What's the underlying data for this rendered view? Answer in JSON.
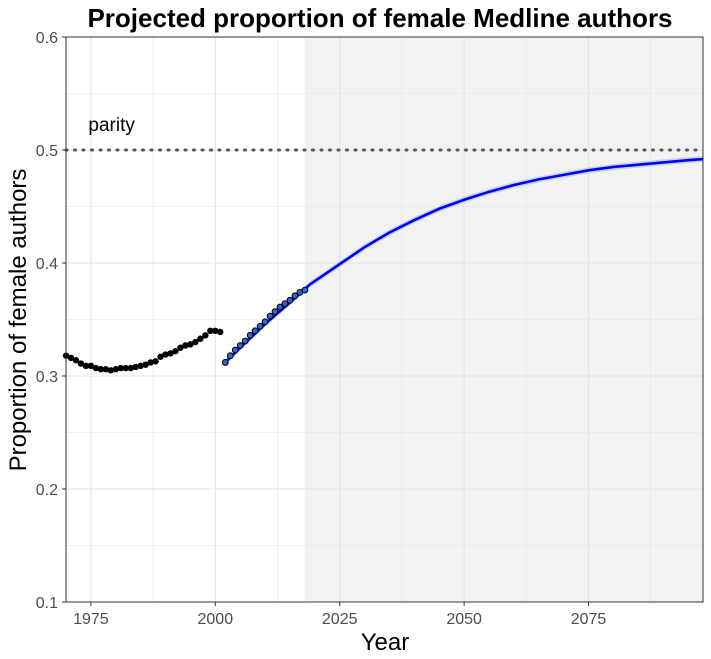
{
  "chart_data": {
    "type": "scatter",
    "title": "Projected proportion of female Medline authors",
    "xlabel": "Year",
    "ylabel": "Proportion of female authors",
    "xlim": [
      1970,
      2098
    ],
    "ylim": [
      0.1,
      0.6
    ],
    "x_ticks": [
      1975,
      2000,
      2025,
      2050,
      2075
    ],
    "y_ticks": [
      0.1,
      0.2,
      0.3,
      0.4,
      0.5,
      0.6
    ],
    "grid": true,
    "projection_region": {
      "x_start": 2018,
      "x_end": 2098,
      "color": "#f2f2f2"
    },
    "reference_line": {
      "y": 0.5,
      "label": "parity",
      "label_x": 1974.5,
      "label_y": 0.517,
      "style": "dotted",
      "color": "#555555"
    },
    "series": [
      {
        "role": "observed-early",
        "kind": "points",
        "color": "#000000",
        "x": [
          1970,
          1971,
          1972,
          1973,
          1974,
          1975,
          1976,
          1977,
          1978,
          1979,
          1980,
          1981,
          1982,
          1983,
          1984,
          1985,
          1986,
          1987,
          1988,
          1989,
          1990,
          1991,
          1992,
          1993,
          1994,
          1995,
          1996,
          1997,
          1998,
          1999,
          2000,
          2001
        ],
        "y": [
          0.318,
          0.316,
          0.314,
          0.311,
          0.309,
          0.309,
          0.307,
          0.306,
          0.306,
          0.305,
          0.306,
          0.307,
          0.307,
          0.307,
          0.308,
          0.309,
          0.31,
          0.312,
          0.313,
          0.317,
          0.319,
          0.32,
          0.322,
          0.325,
          0.327,
          0.328,
          0.33,
          0.333,
          0.336,
          0.34,
          0.34,
          0.339
        ]
      },
      {
        "role": "observed-recent",
        "kind": "points",
        "color": "#000000",
        "fill": "#3366cc",
        "x": [
          2002,
          2003,
          2004,
          2005,
          2006,
          2007,
          2008,
          2009,
          2010,
          2011,
          2012,
          2013,
          2014,
          2015,
          2016,
          2017,
          2018
        ],
        "y": [
          0.312,
          0.318,
          0.323,
          0.327,
          0.331,
          0.336,
          0.34,
          0.344,
          0.348,
          0.353,
          0.357,
          0.361,
          0.364,
          0.367,
          0.371,
          0.374,
          0.376
        ]
      },
      {
        "role": "fitted-projection",
        "kind": "line",
        "color": "#0000ff",
        "band_color": "#b8c4e8",
        "x": [
          2002,
          2005,
          2010,
          2015,
          2019,
          2025,
          2030,
          2035,
          2040,
          2045,
          2050,
          2055,
          2060,
          2065,
          2070,
          2075,
          2080,
          2085,
          2090,
          2095,
          2098
        ],
        "y": [
          0.312,
          0.325,
          0.346,
          0.365,
          0.381,
          0.399,
          0.414,
          0.427,
          0.438,
          0.448,
          0.456,
          0.463,
          0.469,
          0.474,
          0.478,
          0.482,
          0.485,
          0.487,
          0.489,
          0.491,
          0.492
        ]
      }
    ]
  }
}
